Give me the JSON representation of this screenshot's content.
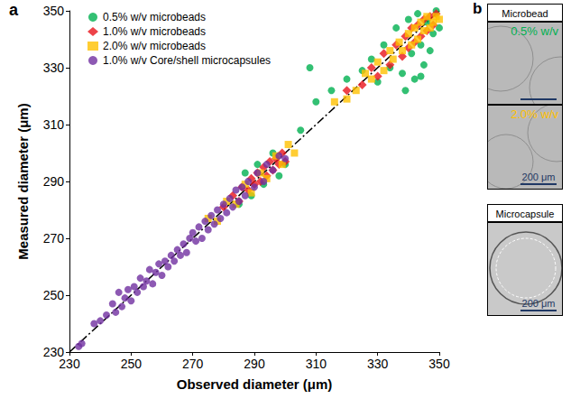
{
  "chart_data": {
    "type": "scatter",
    "panel_label": "a",
    "x_label": "Observed diameter (μm)",
    "y_label": "Measured diameter (μm)",
    "xlim": [
      230,
      350
    ],
    "xticks": [
      230,
      250,
      270,
      290,
      310,
      330,
      350
    ],
    "ylim": [
      230,
      350
    ],
    "yticks": [
      230,
      250,
      270,
      290,
      310,
      330,
      350
    ],
    "grid": false,
    "legend": "upper left",
    "series": [
      {
        "name": "0.5% w/v microbeads",
        "color": "#00b050",
        "marker": "circle",
        "x": [
          285,
          287,
          289,
          291,
          293,
          296,
          298,
          300,
          305,
          308,
          310,
          315,
          320,
          325,
          328,
          330,
          332,
          334,
          336,
          338,
          340,
          341,
          342,
          343,
          344,
          345,
          346,
          347,
          348,
          349,
          350,
          344,
          339
        ],
        "values": [
          282,
          293,
          285,
          296,
          289,
          300,
          292,
          296,
          308,
          330,
          318,
          322,
          326,
          329,
          333,
          325,
          338,
          330,
          344,
          328,
          347,
          335,
          326,
          349,
          338,
          331,
          346,
          336,
          342,
          350,
          344,
          327,
          322
        ]
      },
      {
        "name": "1.0% w/v microbeads",
        "color": "#e8141c",
        "marker": "diamond",
        "x": [
          280,
          283,
          285,
          286,
          288,
          289,
          290,
          291,
          292,
          293,
          294,
          295,
          296,
          297,
          298,
          299,
          300,
          320,
          325,
          328,
          330,
          332,
          334,
          336,
          338,
          339,
          340,
          341,
          342,
          343,
          344,
          345,
          346,
          347,
          348,
          349
        ],
        "values": [
          281,
          285,
          283,
          288,
          287,
          291,
          289,
          293,
          290,
          295,
          292,
          297,
          294,
          298,
          296,
          300,
          297,
          322,
          324,
          330,
          327,
          335,
          331,
          338,
          334,
          341,
          337,
          344,
          339,
          345,
          341,
          347,
          343,
          348,
          345,
          349
        ]
      },
      {
        "name": "2.0% w/v microbeads",
        "color": "#ffc000",
        "marker": "square",
        "x": [
          275,
          278,
          281,
          284,
          287,
          289,
          292,
          294,
          297,
          299,
          301,
          303,
          316,
          320,
          323,
          326,
          328,
          330,
          332,
          334,
          335,
          337,
          338,
          340,
          341,
          342,
          343,
          344,
          345,
          346,
          347,
          348,
          349,
          350
        ],
        "values": [
          277,
          276,
          283,
          282,
          289,
          286,
          293,
          291,
          299,
          296,
          303,
          300,
          318,
          319,
          322,
          328,
          326,
          332,
          329,
          336,
          333,
          339,
          336,
          342,
          338,
          344,
          340,
          346,
          343,
          348,
          344,
          346,
          348,
          347
        ]
      },
      {
        "name": "1.0% w/v Core/shell microcapsules",
        "color": "#7030a0",
        "marker": "circle",
        "x": [
          233,
          234,
          238,
          240,
          242,
          244,
          245,
          246,
          247,
          248,
          249,
          250,
          251,
          252,
          253,
          254,
          255,
          256,
          257,
          258,
          259,
          260,
          261,
          262,
          263,
          264,
          265,
          266,
          267,
          268,
          269,
          270,
          271,
          272,
          273,
          274,
          275,
          276,
          277,
          278,
          279,
          280,
          281,
          282,
          283,
          284,
          285,
          286,
          287,
          288,
          290,
          291,
          293,
          294,
          296,
          298,
          300
        ],
        "values": [
          232,
          233,
          240,
          241,
          243,
          247,
          244,
          251,
          246,
          249,
          252,
          248,
          253,
          251,
          256,
          253,
          255,
          259,
          254,
          258,
          261,
          257,
          262,
          260,
          264,
          262,
          266,
          264,
          268,
          265,
          270,
          272,
          269,
          274,
          270,
          276,
          273,
          278,
          275,
          280,
          277,
          282,
          279,
          284,
          281,
          287,
          283,
          288,
          285,
          290,
          288,
          293,
          290,
          296,
          294,
          299,
          298
        ]
      },
      {
        "type": "line",
        "color": "#000000",
        "line_style": "dashdot",
        "x": [
          230,
          350
        ],
        "values": [
          230,
          350
        ]
      }
    ]
  },
  "inset": {
    "panel_label": "b",
    "groups": [
      {
        "title": "Microbead",
        "images": [
          {
            "label": "0.5% w/v",
            "color": "#00b050"
          },
          {
            "label": "2.0% w/v",
            "color": "#ffc000",
            "scale_bar": "200 μm"
          }
        ]
      },
      {
        "title": "Microcapsule",
        "images": [
          {
            "scale_bar": "200 μm"
          }
        ]
      }
    ]
  }
}
